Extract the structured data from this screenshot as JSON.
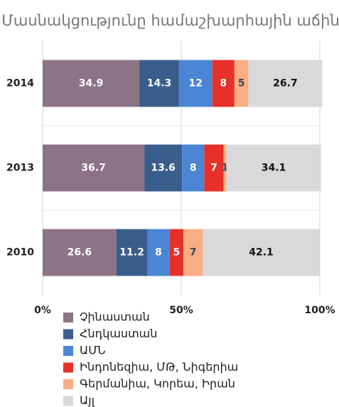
{
  "chart_data": {
    "type": "bar",
    "orientation": "horizontal",
    "stacked": true,
    "title": "Մասնակցությունը համաշխարհային աճին",
    "categories": [
      "2014",
      "2013",
      "2010"
    ],
    "series": [
      {
        "name": "Չինաստան",
        "color": "#8c7385",
        "label_color": "#ffffff",
        "values": [
          34.9,
          36.7,
          26.6
        ]
      },
      {
        "name": "Հնդկաստան",
        "color": "#3a5e8c",
        "label_color": "#ffffff",
        "values": [
          14.3,
          13.6,
          11.2
        ]
      },
      {
        "name": "ԱՄՆ",
        "color": "#4a86d4",
        "label_color": "#ffffff",
        "values": [
          12,
          8,
          8
        ]
      },
      {
        "name": "Ինդոնեզիա, ՄԹ, Նիգերիա",
        "color": "#e8302a",
        "label_color": "#ffffff",
        "values": [
          8,
          7,
          5
        ]
      },
      {
        "name": "Գերմանիա, Կորեա, Իրան",
        "color": "#f8ad84",
        "label_color": "#3a4a5a",
        "values": [
          5,
          1,
          7
        ]
      },
      {
        "name": "Այլ",
        "color": "#d9d9d9",
        "label_color": "#111111",
        "values": [
          26.7,
          34.1,
          42.1
        ]
      }
    ],
    "xlim": [
      0,
      100
    ],
    "xticks": [
      {
        "value": 0,
        "label": "0%"
      },
      {
        "value": 50,
        "label": "50%"
      },
      {
        "value": 100,
        "label": "100%"
      }
    ],
    "grid": true
  }
}
